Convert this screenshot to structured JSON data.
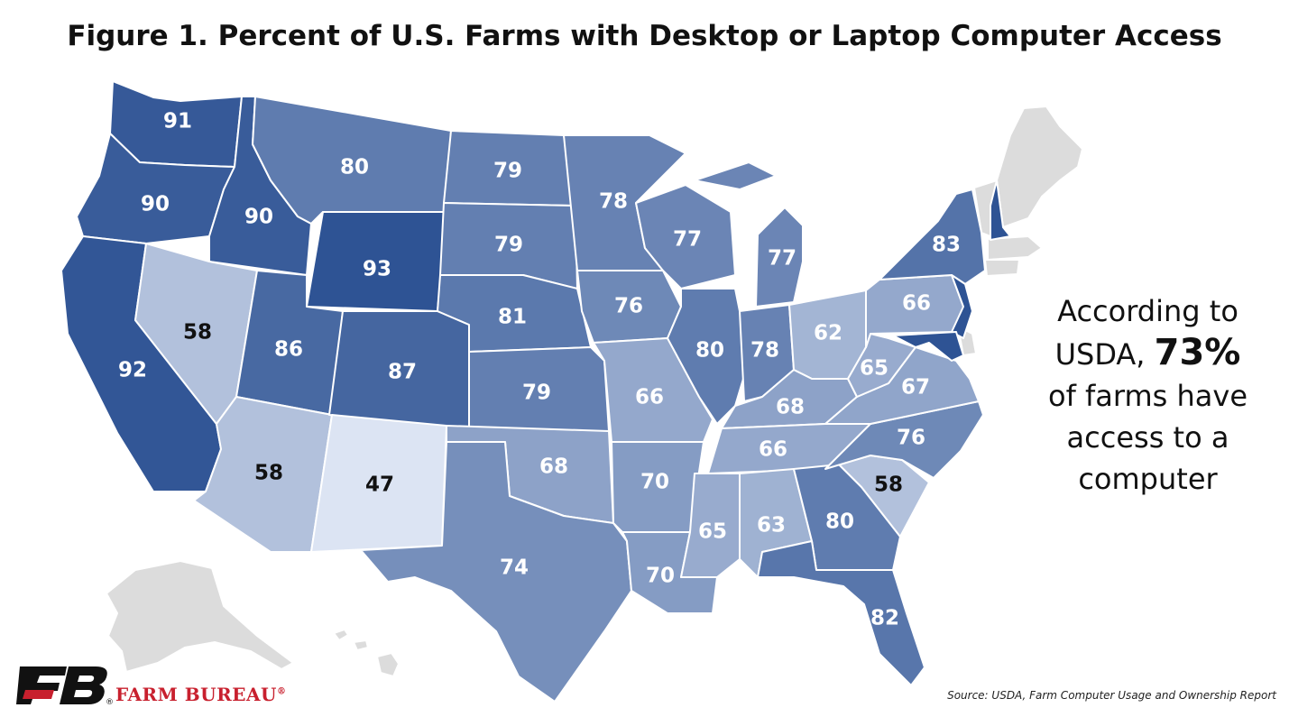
{
  "title": "Figure 1. Percent of U.S. Farms with Desktop or Laptop Computer Access",
  "callout": {
    "line1": "According to",
    "line2_prefix": "USDA, ",
    "highlight": "73%",
    "line3": "of farms have",
    "line4": "access to a",
    "line5": "computer"
  },
  "source": "Source: USDA, Farm Computer Usage and Ownership Report",
  "logo": {
    "mark": "FB",
    "text": "FARM BUREAU",
    "reg": "®",
    "color": "#c8202e"
  },
  "color_scale": {
    "low": "#dce4f3",
    "high": "#2e5394",
    "min": 47,
    "max": 93,
    "dark_text_below": 60
  },
  "no_data_color": "#dcdcdc",
  "states": [
    {
      "id": "WA",
      "value": 91
    },
    {
      "id": "OR",
      "value": 90
    },
    {
      "id": "CA",
      "value": 92
    },
    {
      "id": "ID",
      "value": 90
    },
    {
      "id": "NV",
      "value": 58
    },
    {
      "id": "MT",
      "value": 80
    },
    {
      "id": "WY",
      "value": 93
    },
    {
      "id": "UT",
      "value": 86
    },
    {
      "id": "AZ",
      "value": 58
    },
    {
      "id": "CO",
      "value": 87
    },
    {
      "id": "NM",
      "value": 47
    },
    {
      "id": "ND",
      "value": 79
    },
    {
      "id": "SD",
      "value": 79
    },
    {
      "id": "NE",
      "value": 81
    },
    {
      "id": "KS",
      "value": 79
    },
    {
      "id": "OK",
      "value": 68
    },
    {
      "id": "TX",
      "value": 74
    },
    {
      "id": "MN",
      "value": 78
    },
    {
      "id": "IA",
      "value": 76
    },
    {
      "id": "MO",
      "value": 66
    },
    {
      "id": "AR",
      "value": 70
    },
    {
      "id": "LA",
      "value": 70
    },
    {
      "id": "WI",
      "value": 77
    },
    {
      "id": "IL",
      "value": 80
    },
    {
      "id": "MI",
      "value": 77
    },
    {
      "id": "IN",
      "value": 78
    },
    {
      "id": "OH",
      "value": 62
    },
    {
      "id": "KY",
      "value": 68
    },
    {
      "id": "TN",
      "value": 66
    },
    {
      "id": "MS",
      "value": 65
    },
    {
      "id": "AL",
      "value": 63
    },
    {
      "id": "GA",
      "value": 80
    },
    {
      "id": "FL",
      "value": 82
    },
    {
      "id": "SC",
      "value": 58
    },
    {
      "id": "NC",
      "value": 76
    },
    {
      "id": "VA",
      "value": 67
    },
    {
      "id": "WV",
      "value": 65
    },
    {
      "id": "PA",
      "value": 66
    },
    {
      "id": "NY",
      "value": 83
    },
    {
      "id": "NJ",
      "value": null
    },
    {
      "id": "MD",
      "value": null
    },
    {
      "id": "NH",
      "value": null
    }
  ]
}
